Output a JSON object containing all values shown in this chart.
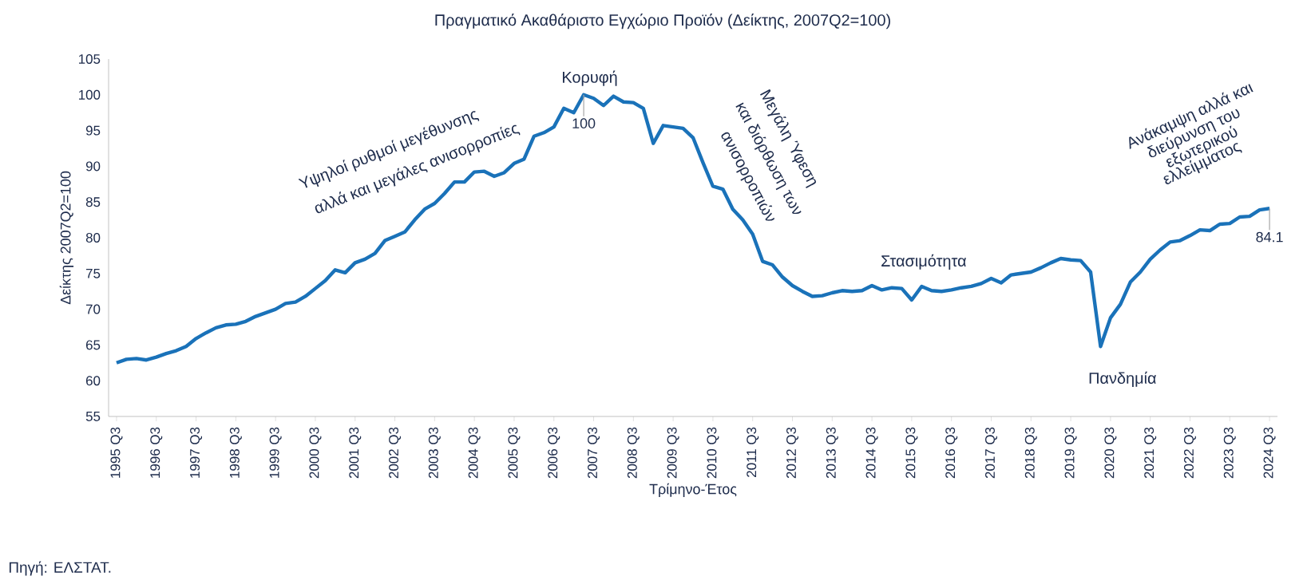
{
  "chart_data": {
    "type": "line",
    "title": "Πραγματικό Ακαθάριστο Εγχώριο Προϊόν (Δείκτης, 2007Q2=100)",
    "xlabel": "Τρίμηνο-Έτος",
    "ylabel": "Δείκτης 2007Q2=100",
    "color": "#1a72b9",
    "categories": [
      "1995 Q3",
      null,
      null,
      null,
      "1996 Q3",
      null,
      null,
      null,
      "1997 Q3",
      null,
      null,
      null,
      "1998 Q3",
      null,
      null,
      null,
      "1999 Q3",
      null,
      null,
      null,
      "2000 Q3",
      null,
      null,
      null,
      "2001 Q3",
      null,
      null,
      null,
      "2002 Q3",
      null,
      null,
      null,
      "2003 Q3",
      null,
      null,
      null,
      "2004 Q3",
      null,
      null,
      null,
      "2005 Q3",
      null,
      null,
      null,
      "2006 Q3",
      null,
      null,
      null,
      "2007 Q3",
      null,
      null,
      null,
      "2008 Q3",
      null,
      null,
      null,
      "2009 Q3",
      null,
      null,
      null,
      "2010 Q3",
      null,
      null,
      null,
      "2011 Q3",
      null,
      null,
      null,
      "2012 Q3",
      null,
      null,
      null,
      "2013 Q3",
      null,
      null,
      null,
      "2014 Q3",
      null,
      null,
      null,
      "2015 Q3",
      null,
      null,
      null,
      "2016 Q3",
      null,
      null,
      null,
      "2017 Q3",
      null,
      null,
      null,
      "2018 Q3",
      null,
      null,
      null,
      "2019 Q3",
      null,
      null,
      null,
      "2020 Q3",
      null,
      null,
      null,
      "2021 Q3",
      null,
      null,
      null,
      "2022 Q3",
      null,
      null,
      null,
      "2023 Q3",
      null,
      null,
      null,
      "2024 Q3"
    ],
    "values": [
      62.5,
      63.0,
      63.1,
      62.9,
      63.3,
      63.8,
      64.2,
      64.8,
      65.9,
      66.7,
      67.4,
      67.8,
      67.9,
      68.3,
      69.0,
      69.5,
      70.0,
      70.8,
      71.0,
      71.8,
      72.9,
      74.0,
      75.5,
      75.1,
      76.5,
      77.0,
      77.8,
      79.6,
      80.2,
      80.8,
      82.5,
      84.0,
      84.8,
      86.2,
      87.8,
      87.8,
      89.2,
      89.3,
      88.6,
      89.1,
      90.4,
      91.0,
      94.2,
      94.7,
      95.5,
      98.1,
      97.5,
      100,
      99.5,
      98.5,
      99.8,
      99.0,
      98.9,
      98.1,
      93.2,
      95.7,
      95.5,
      95.3,
      94.0,
      90.5,
      87.2,
      86.8,
      84.0,
      82.5,
      80.5,
      76.7,
      76.2,
      74.5,
      73.3,
      72.5,
      71.8,
      71.9,
      72.3,
      72.6,
      72.5,
      72.6,
      73.3,
      72.7,
      73.0,
      72.9,
      71.3,
      73.2,
      72.6,
      72.5,
      72.7,
      73.0,
      73.2,
      73.6,
      74.3,
      73.7,
      74.8,
      75.0,
      75.2,
      75.8,
      76.5,
      77.1,
      76.9,
      76.8,
      75.2,
      64.8,
      68.8,
      70.7,
      73.8,
      75.2,
      77.0,
      78.3,
      79.4,
      79.6,
      80.3,
      81.1,
      81.0,
      81.9,
      82.0,
      82.9,
      83.0,
      83.9,
      84.1
    ],
    "ylim": [
      55,
      105
    ],
    "yticks": [
      55,
      60,
      65,
      70,
      75,
      80,
      85,
      90,
      95,
      100,
      105
    ],
    "grid": false,
    "annotations": [
      "Κορυφή",
      "Υψηλοί ρυθμοί μεγέθυνσης",
      "αλλά και μεγάλες ανισορροπίες",
      "Μεγάλη Ύφεση",
      "και διόρθωση των",
      "ανισορροπιών",
      "Στασιμότητα",
      "Πανδημία",
      "Ανάκαμψη αλλά και",
      "διεύρυνση του",
      "εξωτερικού",
      "ελλείμματος",
      {
        "text": "100",
        "y": 100
      },
      {
        "text": "84.1",
        "y": 84.1
      },
      "Πηγή: ΕΛΣΤΑΤ."
    ]
  }
}
